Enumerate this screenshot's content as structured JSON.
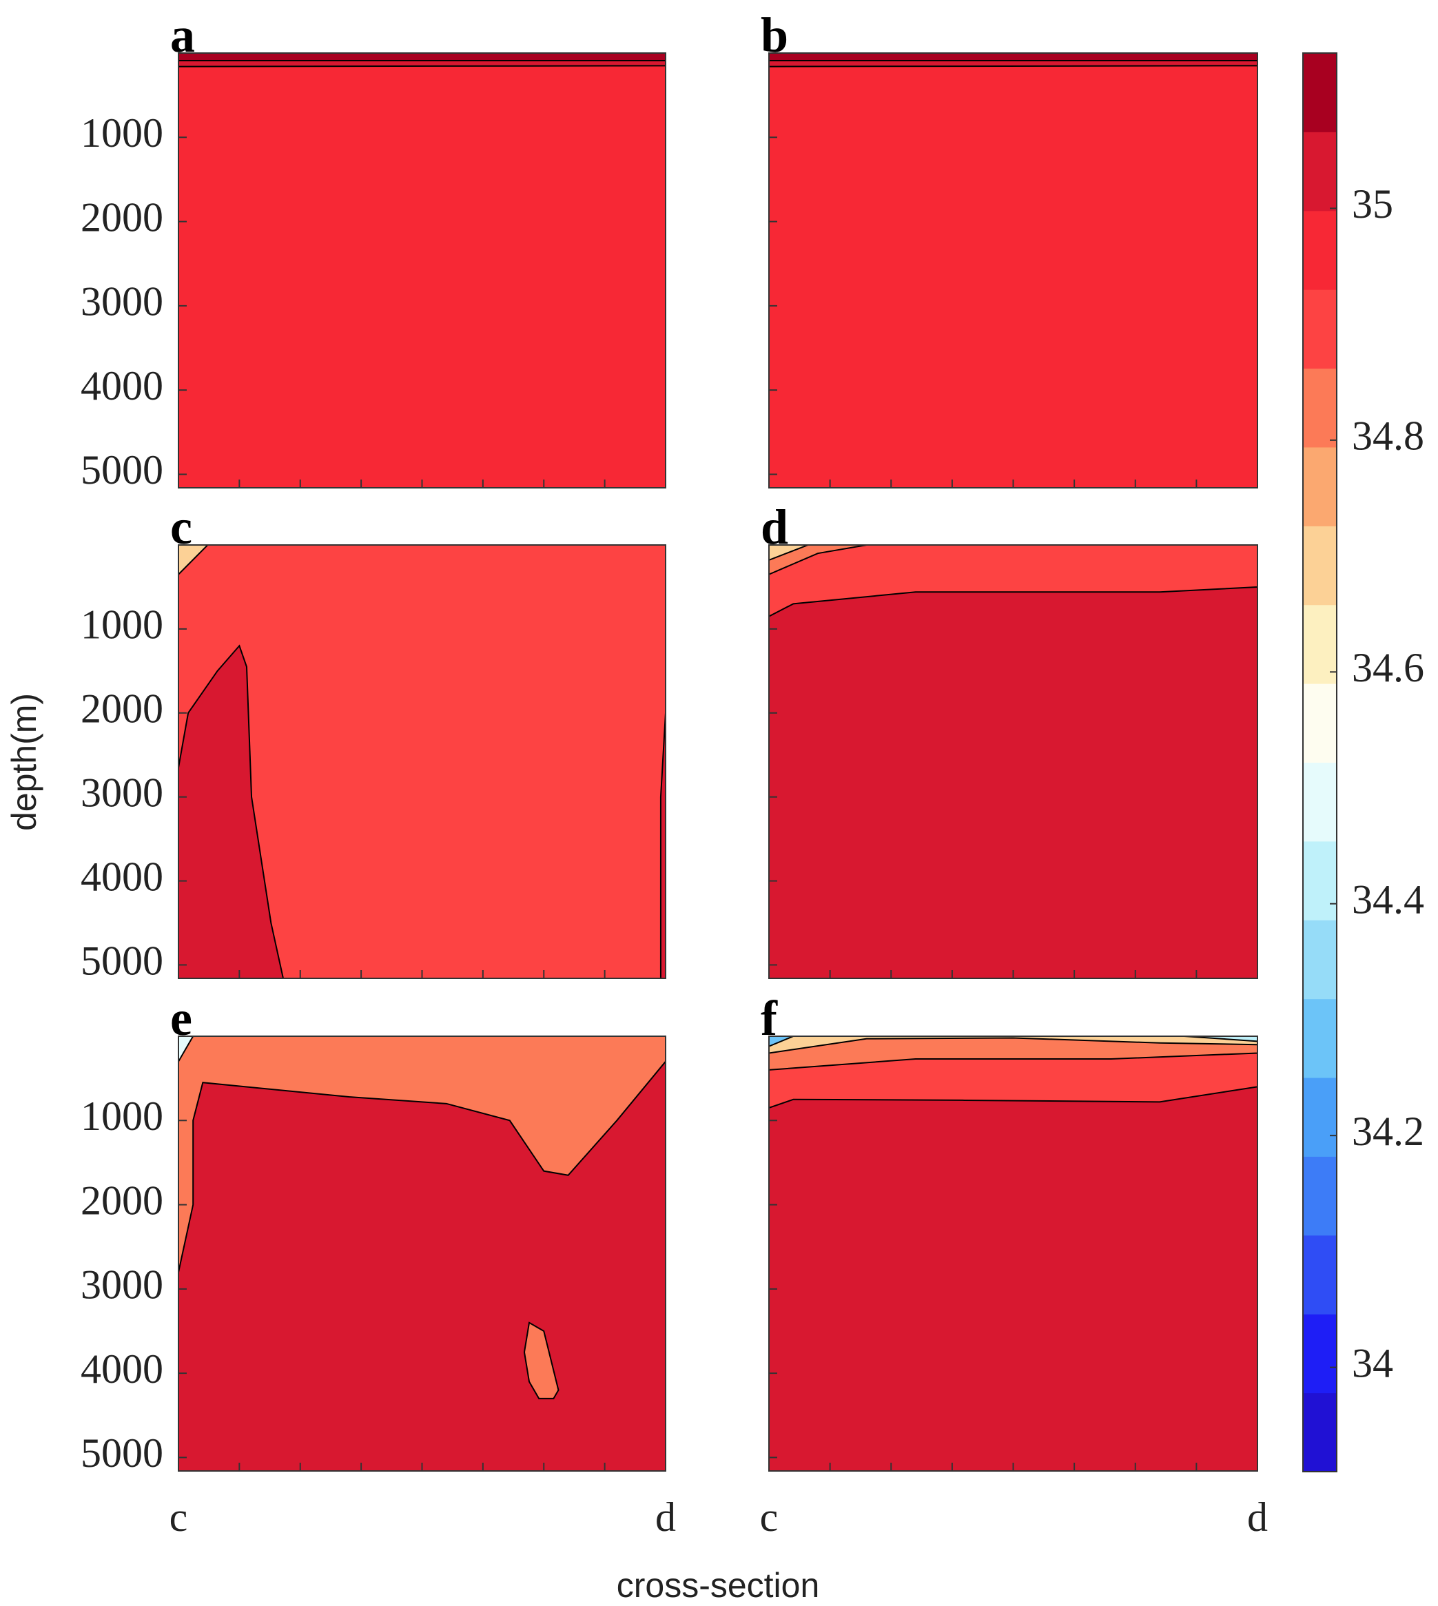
{
  "chart_data": {
    "type": "contour",
    "ylabel": "depth(m)",
    "xlabel": "cross-section",
    "xtick_labels": [
      "c",
      "d"
    ],
    "ylim": [
      0,
      5160
    ],
    "yticks": [
      1000,
      2000,
      3000,
      4000,
      5000
    ],
    "colorbar": {
      "lim": [
        33.91,
        35.134
      ],
      "ticks": [
        34,
        34.2,
        34.4,
        34.6,
        34.8,
        35
      ],
      "colors": [
        "#2011d4",
        "#1e1ef6",
        "#2f4df5",
        "#3d7cf7",
        "#4a9ff8",
        "#6cc4f8",
        "#96dcf8",
        "#bff1fa",
        "#e6fbfc",
        "#fefdf0",
        "#fdf0c0",
        "#fcd196",
        "#fba870",
        "#fc7a57",
        "#fd4343",
        "#f72835",
        "#d81830",
        "#a80020"
      ]
    },
    "panels": [
      {
        "label": "a",
        "background": 34.964,
        "regions": [
          {
            "value": 35.1,
            "outline": [
              [
                0,
                0
              ],
              [
                1,
                0
              ],
              [
                1,
                90
              ],
              [
                0,
                90
              ]
            ]
          },
          {
            "value": 35.032,
            "outline": [
              [
                0,
                90
              ],
              [
                1,
                90
              ],
              [
                1,
                150
              ],
              [
                0,
                160
              ]
            ]
          }
        ]
      },
      {
        "label": "b",
        "background": 34.964,
        "regions": [
          {
            "value": 35.1,
            "outline": [
              [
                0,
                0
              ],
              [
                1,
                0
              ],
              [
                1,
                90
              ],
              [
                0,
                90
              ]
            ]
          },
          {
            "value": 35.032,
            "outline": [
              [
                0,
                90
              ],
              [
                1,
                90
              ],
              [
                1,
                150
              ],
              [
                0,
                160
              ]
            ]
          }
        ]
      },
      {
        "label": "c",
        "background": 34.896,
        "regions": [
          {
            "value": 35.032,
            "outline": [
              [
                0,
                2650
              ],
              [
                0.02,
                2000
              ],
              [
                0.08,
                1500
              ],
              [
                0.125,
                1200
              ],
              [
                0.14,
                1450
              ],
              [
                0.15,
                3000
              ],
              [
                0.19,
                4500
              ],
              [
                0.215,
                5160
              ],
              [
                0,
                5160
              ]
            ]
          },
          {
            "value": 35.032,
            "outline": [
              [
                1,
                2000
              ],
              [
                0.99,
                3000
              ],
              [
                0.99,
                5160
              ],
              [
                1,
                5160
              ]
            ]
          },
          {
            "value": 34.7,
            "outline": [
              [
                0,
                0
              ],
              [
                0.06,
                0
              ],
              [
                0,
                350
              ]
            ]
          }
        ]
      },
      {
        "label": "d",
        "background": 35.032,
        "regions": [
          {
            "value": 34.896,
            "outline": [
              [
                0,
                0
              ],
              [
                1,
                0
              ],
              [
                1,
                500
              ],
              [
                0.8,
                560
              ],
              [
                0.3,
                560
              ],
              [
                0.05,
                700
              ],
              [
                0,
                850
              ]
            ]
          },
          {
            "value": 34.828,
            "outline": [
              [
                0,
                0
              ],
              [
                0.2,
                0
              ],
              [
                0.1,
                100
              ],
              [
                0,
                350
              ]
            ]
          },
          {
            "value": 34.7,
            "outline": [
              [
                0,
                0
              ],
              [
                0.08,
                0
              ],
              [
                0,
                180
              ]
            ]
          }
        ]
      },
      {
        "label": "e",
        "background": 35.032,
        "regions": [
          {
            "value": 34.828,
            "outline": [
              [
                0,
                0
              ],
              [
                1,
                0
              ],
              [
                1,
                300
              ],
              [
                0.9,
                1000
              ],
              [
                0.8,
                1650
              ],
              [
                0.75,
                1600
              ],
              [
                0.68,
                1000
              ],
              [
                0.55,
                800
              ],
              [
                0.35,
                720
              ],
              [
                0.05,
                550
              ],
              [
                0.03,
                1000
              ],
              [
                0.03,
                2000
              ],
              [
                0,
                2800
              ]
            ]
          },
          {
            "value": 34.828,
            "outline": [
              [
                0.72,
                3400
              ],
              [
                0.75,
                3500
              ],
              [
                0.78,
                4200
              ],
              [
                0.77,
                4300
              ],
              [
                0.74,
                4300
              ],
              [
                0.72,
                4100
              ],
              [
                0.71,
                3750
              ]
            ]
          },
          {
            "value": 34.5,
            "outline": [
              [
                0,
                0
              ],
              [
                0.03,
                0
              ],
              [
                0,
                300
              ]
            ]
          }
        ]
      },
      {
        "label": "f",
        "background": 35.032,
        "regions": [
          {
            "value": 34.896,
            "outline": [
              [
                0,
                0
              ],
              [
                1,
                0
              ],
              [
                1,
                600
              ],
              [
                0.8,
                780
              ],
              [
                0.4,
                760
              ],
              [
                0.05,
                750
              ],
              [
                0,
                850
              ]
            ]
          },
          {
            "value": 34.828,
            "outline": [
              [
                0,
                0
              ],
              [
                1,
                0
              ],
              [
                1,
                200
              ],
              [
                0.7,
                270
              ],
              [
                0.3,
                270
              ],
              [
                0,
                400
              ]
            ]
          },
          {
            "value": 34.7,
            "outline": [
              [
                0,
                0
              ],
              [
                1,
                0
              ],
              [
                1,
                100
              ],
              [
                0.8,
                80
              ],
              [
                0.5,
                20
              ],
              [
                0.2,
                30
              ],
              [
                0,
                200
              ]
            ]
          },
          {
            "value": 34.4,
            "outline": [
              [
                0.85,
                0
              ],
              [
                1,
                0
              ],
              [
                1,
                60
              ]
            ]
          },
          {
            "value": 34.3,
            "outline": [
              [
                0,
                0
              ],
              [
                0.05,
                0
              ],
              [
                0,
                120
              ]
            ]
          }
        ]
      }
    ]
  }
}
